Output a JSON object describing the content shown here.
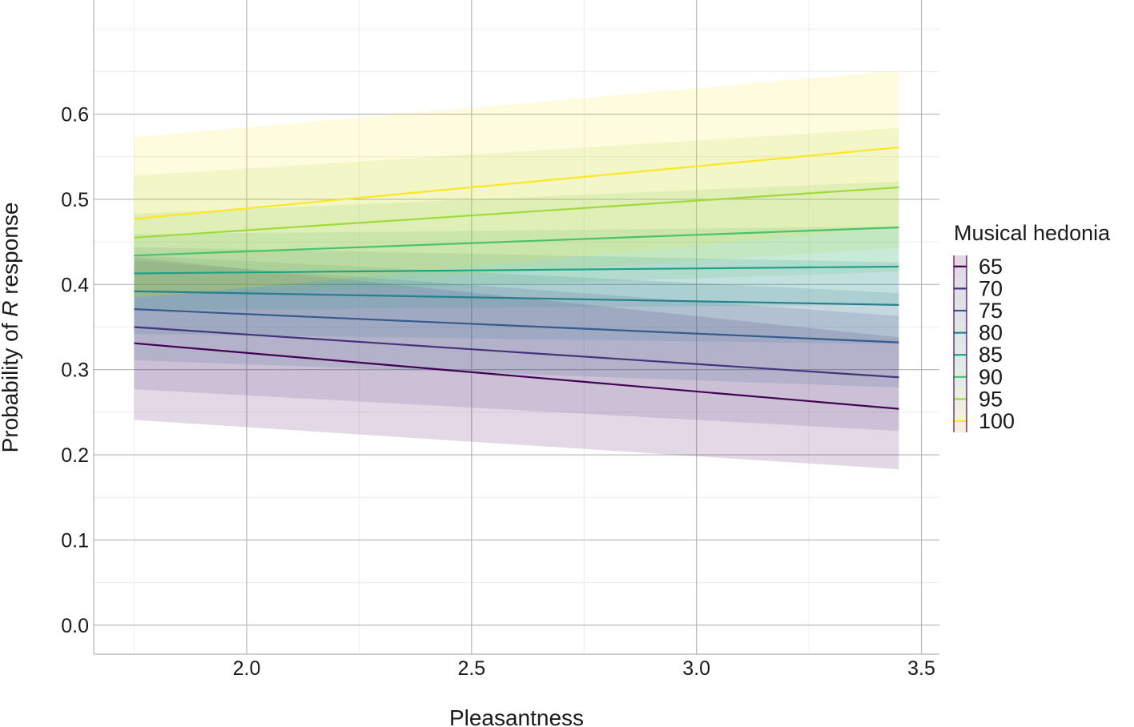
{
  "chart_data": {
    "type": "line",
    "title": "",
    "xlabel": "Pleasantness",
    "ylabel_parts": [
      "Probability of ",
      "R",
      " response"
    ],
    "xlim": [
      1.66,
      3.54
    ],
    "ylim": [
      -0.034,
      0.734
    ],
    "x_ticks": [
      {
        "value": 2.0,
        "label": "2.0"
      },
      {
        "value": 2.5,
        "label": "2.5"
      },
      {
        "value": 3.0,
        "label": "3.0"
      },
      {
        "value": 3.5,
        "label": "3.5"
      }
    ],
    "y_ticks": [
      {
        "value": 0.0,
        "label": "0.0"
      },
      {
        "value": 0.1,
        "label": "0.1"
      },
      {
        "value": 0.2,
        "label": "0.2"
      },
      {
        "value": 0.3,
        "label": "0.3"
      },
      {
        "value": 0.4,
        "label": "0.4"
      },
      {
        "value": 0.5,
        "label": "0.5"
      },
      {
        "value": 0.6,
        "label": "0.6"
      }
    ],
    "grid": true,
    "legend": {
      "title": "Musical hedonia",
      "position": "right"
    },
    "x": [
      1.75,
      3.45
    ],
    "series": [
      {
        "name": "65",
        "color": "#440154",
        "fit": [
          0.331,
          0.254
        ],
        "lower": [
          0.241,
          0.183
        ],
        "upper": [
          0.432,
          0.338
        ]
      },
      {
        "name": "70",
        "color": "#46337E",
        "fit": [
          0.35,
          0.291
        ],
        "lower": [
          0.277,
          0.228
        ],
        "upper": [
          0.428,
          0.363
        ]
      },
      {
        "name": "75",
        "color": "#365C8D",
        "fit": [
          0.371,
          0.332
        ],
        "lower": [
          0.311,
          0.279
        ],
        "upper": [
          0.434,
          0.39
        ]
      },
      {
        "name": "80",
        "color": "#277F8E",
        "fit": [
          0.392,
          0.376
        ],
        "lower": [
          0.342,
          0.33
        ],
        "upper": [
          0.444,
          0.426
        ]
      },
      {
        "name": "85",
        "color": "#1FA187",
        "fit": [
          0.413,
          0.421
        ],
        "lower": [
          0.37,
          0.376
        ],
        "upper": [
          0.459,
          0.468
        ]
      },
      {
        "name": "90",
        "color": "#4AC16D",
        "fit": [
          0.434,
          0.467
        ],
        "lower": [
          0.386,
          0.415
        ],
        "upper": [
          0.483,
          0.521
        ]
      },
      {
        "name": "95",
        "color": "#9FDA3A",
        "fit": [
          0.455,
          0.514
        ],
        "lower": [
          0.386,
          0.443
        ],
        "upper": [
          0.528,
          0.584
        ]
      },
      {
        "name": "100",
        "color": "#FDE725",
        "fit": [
          0.477,
          0.561
        ],
        "lower": [
          0.384,
          0.468
        ],
        "upper": [
          0.573,
          0.651
        ]
      }
    ]
  }
}
